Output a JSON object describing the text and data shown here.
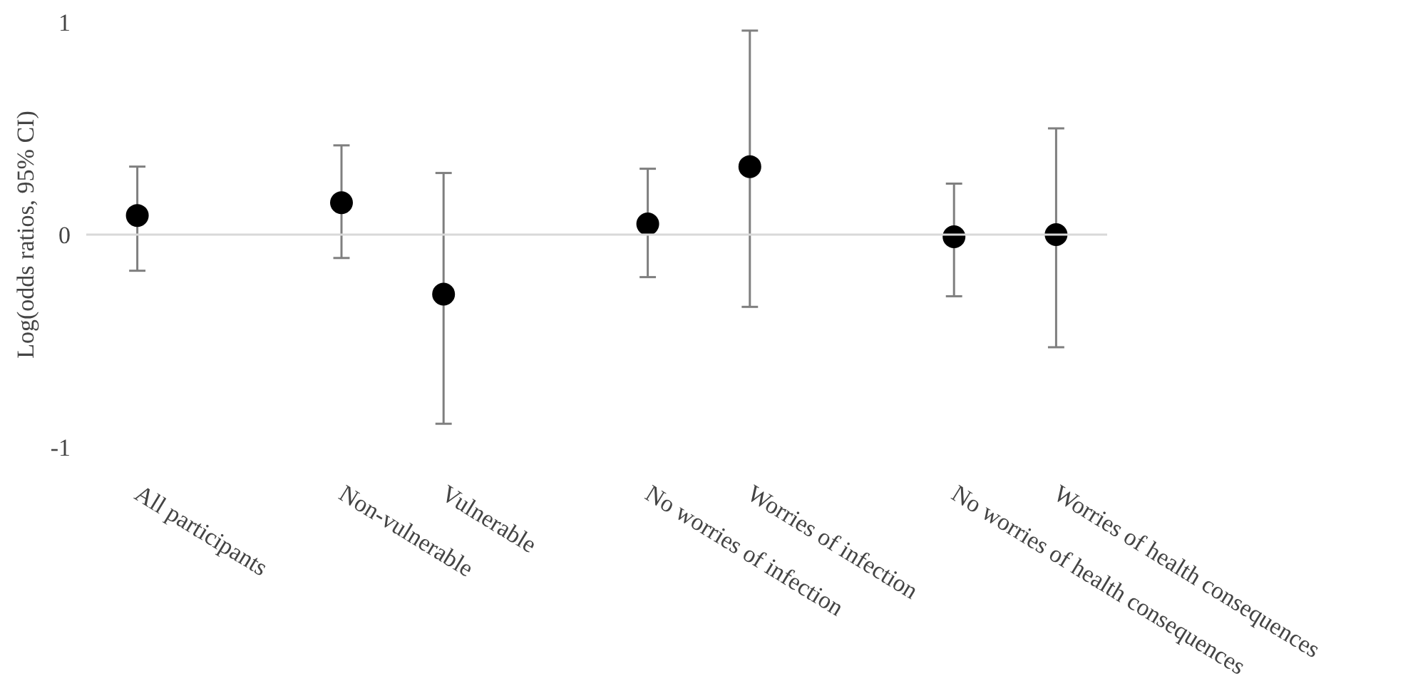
{
  "chart_data": {
    "type": "scatter",
    "ylabel": "Log(odds ratios, 95% CI)",
    "categories": [
      "All participants",
      null,
      "Non-vulnerable",
      "Vulnerable",
      null,
      "No worries of infection",
      "Worries of infection",
      null,
      "No worries of health consequences",
      "Worries of health consequences"
    ],
    "series": [
      {
        "color": "#000000",
        "values": [
          0.09,
          null,
          0.15,
          -0.28,
          null,
          0.05,
          0.32,
          null,
          -0.01,
          0.0
        ],
        "errors": [
          [
            -0.17,
            0.32
          ],
          null,
          [
            -0.11,
            0.42
          ],
          [
            -0.89,
            0.29
          ],
          null,
          [
            -0.2,
            0.31
          ],
          [
            -0.34,
            0.96
          ],
          null,
          [
            -0.29,
            0.24
          ],
          [
            -0.53,
            0.5
          ]
        ]
      }
    ],
    "ylim": [
      -1,
      1
    ],
    "yticks": [
      -1,
      0,
      1
    ],
    "ref_lines": [
      {
        "axis": "y",
        "value": 0,
        "color": "#d9d9d9"
      }
    ],
    "marker": "circle",
    "grid": false
  }
}
